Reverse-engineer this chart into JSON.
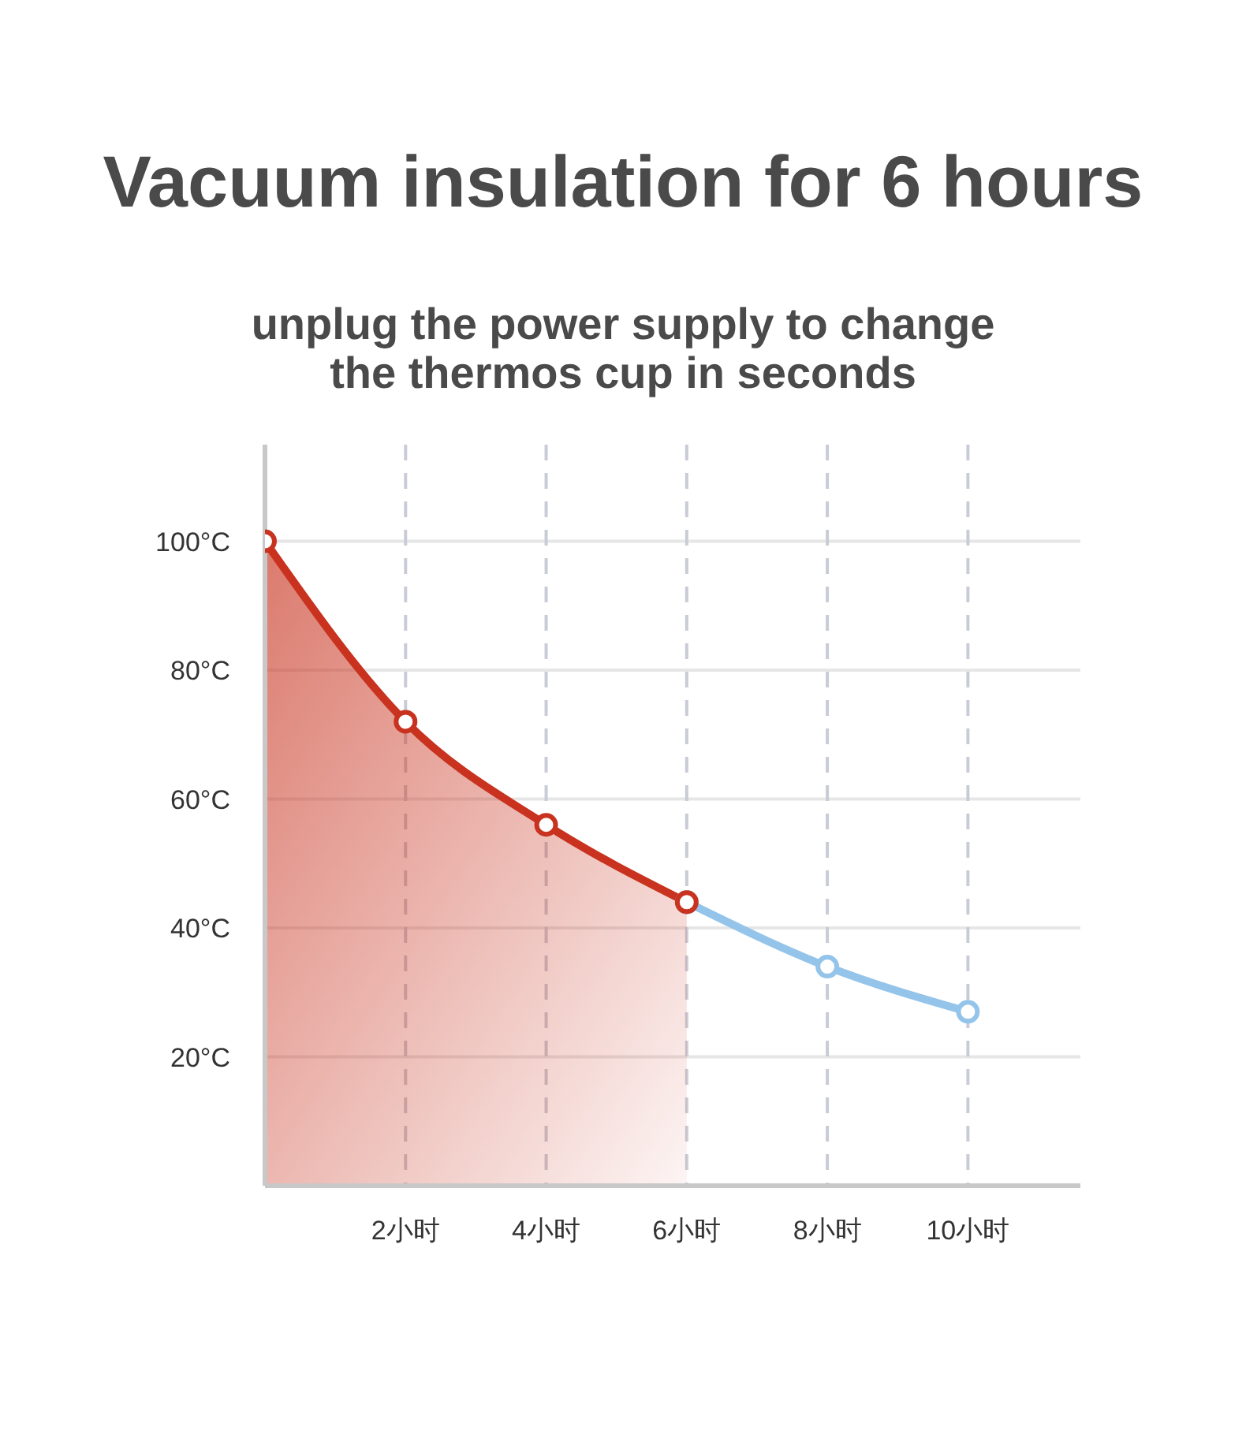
{
  "chart_data": {
    "type": "line",
    "title": "Vacuum insulation for 6 hours",
    "subtitle": "unplug the power supply to change\nthe thermos cup in seconds",
    "series": [
      {
        "type": "area",
        "color": "#c8321e",
        "x": [
          0,
          2,
          4,
          6
        ],
        "values": [
          100,
          72,
          56,
          44
        ]
      },
      {
        "color": "#94c4ea",
        "x": [
          6,
          8,
          10
        ],
        "values": [
          44,
          34,
          27
        ]
      }
    ],
    "xlim": [
      0,
      11.6
    ],
    "xticks": [
      {
        "value": 2,
        "label": "2小时"
      },
      {
        "value": 4,
        "label": "4小时"
      },
      {
        "value": 6,
        "label": "6小时"
      },
      {
        "value": 8,
        "label": "8小时"
      },
      {
        "value": 10,
        "label": "10小时"
      }
    ],
    "ylim": [
      0,
      115
    ],
    "yticks": [
      {
        "value": 20,
        "label": "20°C"
      },
      {
        "value": 40,
        "label": "40°C"
      },
      {
        "value": 60,
        "label": "60°C"
      },
      {
        "value": 80,
        "label": "80°C"
      },
      {
        "value": 100,
        "label": "100°C"
      }
    ],
    "grid": true,
    "marker": "circle",
    "line_style": "solid"
  }
}
